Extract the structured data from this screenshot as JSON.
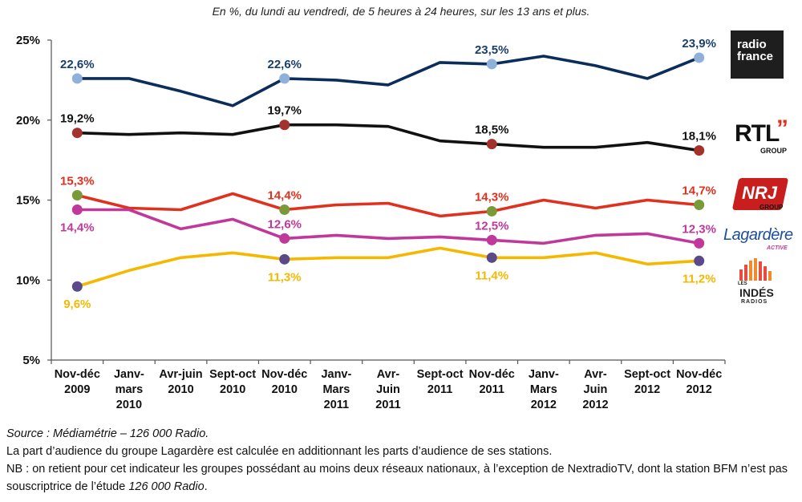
{
  "subtitle": "En %, du lundi au vendredi, de 5 heures à 24 heures, sur les 13 ans et plus.",
  "chart_data": {
    "type": "line",
    "categories": [
      [
        "Nov-déc",
        "2009"
      ],
      [
        "Janv-",
        "mars",
        "2010"
      ],
      [
        "Avr-juin",
        "2010"
      ],
      [
        "Sept-oct",
        "2010"
      ],
      [
        "Nov-déc",
        "2010"
      ],
      [
        "Janv-",
        "Mars",
        "2011"
      ],
      [
        "Avr-",
        "Juin",
        "2011"
      ],
      [
        "Sept-oct",
        "2011"
      ],
      [
        "Nov-déc",
        "2011"
      ],
      [
        "Janv-",
        "Mars",
        "2012"
      ],
      [
        "Avr-",
        "Juin",
        "2012"
      ],
      [
        "Sept-oct",
        "2012"
      ],
      [
        "Nov-déc",
        "2012"
      ]
    ],
    "ylim": [
      5,
      25
    ],
    "yticks": [
      5,
      10,
      15,
      20,
      25
    ],
    "ytick_labels": [
      "5%",
      "10%",
      "15%",
      "20%",
      "25%"
    ],
    "grid": false,
    "series": [
      {
        "logo": "radio-france",
        "color": "#0b2d5b",
        "marker_color": "#8fb0d8",
        "values": [
          22.6,
          22.6,
          21.8,
          20.9,
          22.6,
          22.5,
          22.2,
          23.6,
          23.5,
          24.0,
          23.4,
          22.6,
          23.9
        ],
        "markers": [
          0,
          4,
          8,
          12
        ],
        "labels": [
          {
            "i": 0,
            "text": "22,6%",
            "pos": "above",
            "color": "#1a3f6e"
          },
          {
            "i": 4,
            "text": "22,6%",
            "pos": "above",
            "color": "#1a3f6e"
          },
          {
            "i": 8,
            "text": "23,5%",
            "pos": "above",
            "color": "#1a3f6e"
          },
          {
            "i": 12,
            "text": "23,9%",
            "pos": "above",
            "color": "#1a3f6e"
          }
        ]
      },
      {
        "logo": "rtl-group",
        "color": "#111111",
        "marker_color": "#a3322c",
        "values": [
          19.2,
          19.1,
          19.2,
          19.1,
          19.7,
          19.7,
          19.6,
          18.7,
          18.5,
          18.3,
          18.3,
          18.6,
          18.1
        ],
        "markers": [
          0,
          4,
          8,
          12
        ],
        "labels": [
          {
            "i": 0,
            "text": "19,2%",
            "pos": "above",
            "color": "#111111"
          },
          {
            "i": 4,
            "text": "19,7%",
            "pos": "above",
            "color": "#111111"
          },
          {
            "i": 8,
            "text": "18,5%",
            "pos": "above",
            "color": "#111111"
          },
          {
            "i": 12,
            "text": "18,1%",
            "pos": "above",
            "color": "#111111"
          }
        ]
      },
      {
        "logo": "nrj-group",
        "color": "#e0301e",
        "marker_color": "#7a9a3a",
        "values": [
          15.3,
          14.5,
          14.4,
          15.4,
          14.4,
          14.7,
          14.8,
          14.0,
          14.3,
          15.0,
          14.5,
          15.0,
          14.7
        ],
        "markers": [
          0,
          4,
          8,
          12
        ],
        "labels": [
          {
            "i": 0,
            "text": "15,3%",
            "pos": "above",
            "color": "#e0301e"
          },
          {
            "i": 4,
            "text": "14,4%",
            "pos": "above",
            "color": "#e0301e"
          },
          {
            "i": 8,
            "text": "14,3%",
            "pos": "above",
            "color": "#e0301e"
          },
          {
            "i": 12,
            "text": "14,7%",
            "pos": "above",
            "color": "#e0301e"
          }
        ]
      },
      {
        "logo": "lagardere-active",
        "color": "#c0399a",
        "marker_color": "#c0399a",
        "values": [
          14.4,
          14.4,
          13.2,
          13.8,
          12.6,
          12.8,
          12.6,
          12.7,
          12.5,
          12.3,
          12.8,
          12.9,
          12.3
        ],
        "markers": [
          0,
          4,
          8,
          12
        ],
        "labels": [
          {
            "i": 0,
            "text": "14,4%",
            "pos": "below",
            "color": "#c0399a"
          },
          {
            "i": 4,
            "text": "12,6%",
            "pos": "above",
            "color": "#c0399a"
          },
          {
            "i": 8,
            "text": "12,5%",
            "pos": "above",
            "color": "#c0399a"
          },
          {
            "i": 12,
            "text": "12,3%",
            "pos": "above",
            "color": "#c0399a"
          }
        ]
      },
      {
        "logo": "les-indes-radios",
        "color": "#f5b800",
        "marker_color": "#5a4a8a",
        "values": [
          9.6,
          10.6,
          11.4,
          11.7,
          11.3,
          11.4,
          11.4,
          12.0,
          11.4,
          11.4,
          11.7,
          11.0,
          11.2
        ],
        "markers": [
          0,
          4,
          8,
          12
        ],
        "labels": [
          {
            "i": 0,
            "text": "9,6%",
            "pos": "below",
            "color": "#f5b800"
          },
          {
            "i": 4,
            "text": "11,3%",
            "pos": "below",
            "color": "#f5b800"
          },
          {
            "i": 8,
            "text": "11,4%",
            "pos": "below",
            "color": "#f5b800"
          },
          {
            "i": 12,
            "text": "11,2%",
            "pos": "below",
            "color": "#f5b800"
          }
        ]
      }
    ]
  },
  "logos": {
    "radio_france": {
      "line1": "radio",
      "line2": "france"
    },
    "rtl": {
      "main": "RTL",
      "sub": "GROUP"
    },
    "nrj": {
      "main": "NRJ",
      "sub": "GROUP"
    },
    "lagardere": {
      "main": "Lagardère",
      "sub": "ACTIVE"
    },
    "indes": {
      "line1": "LES",
      "line2": "INDÉS",
      "line3": "RADIOS"
    }
  },
  "footer": {
    "source_prefix": "Source : Médiamétrie – 126 000 Radio.",
    "line2": "La part d’audience du groupe Lagardère est calculée en additionnant les parts d’audience de ses stations.",
    "line3_prefix": "NB : on retient pour cet indicateur les groupes possédant au moins deux réseaux nationaux, à l’exception de NextradioTV, dont la station BFM n’est pas souscriptrice de l’étude ",
    "line3_italic": "126 000 Radio",
    "line3_suffix": "."
  }
}
